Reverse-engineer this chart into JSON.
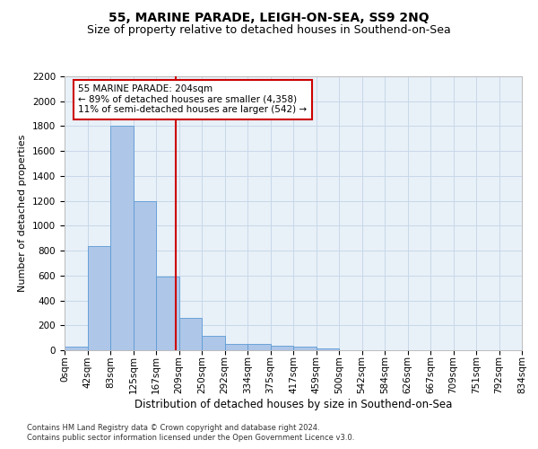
{
  "title": "55, MARINE PARADE, LEIGH-ON-SEA, SS9 2NQ",
  "subtitle": "Size of property relative to detached houses in Southend-on-Sea",
  "xlabel": "Distribution of detached houses by size in Southend-on-Sea",
  "ylabel": "Number of detached properties",
  "bin_labels": [
    "0sqm",
    "42sqm",
    "83sqm",
    "125sqm",
    "167sqm",
    "209sqm",
    "250sqm",
    "292sqm",
    "334sqm",
    "375sqm",
    "417sqm",
    "459sqm",
    "500sqm",
    "542sqm",
    "584sqm",
    "626sqm",
    "667sqm",
    "709sqm",
    "751sqm",
    "792sqm",
    "834sqm"
  ],
  "bar_values": [
    30,
    840,
    1800,
    1200,
    590,
    260,
    115,
    50,
    50,
    35,
    30,
    15,
    0,
    0,
    0,
    0,
    0,
    0,
    0,
    0
  ],
  "bar_color": "#aec6e8",
  "bar_edge_color": "#5b9bd5",
  "grid_color": "#c8d8e8",
  "background_color": "#e8f0f8",
  "vline_color": "#cc0000",
  "annotation_text": "55 MARINE PARADE: 204sqm\n← 89% of detached houses are smaller (4,358)\n11% of semi-detached houses are larger (542) →",
  "annotation_box_color": "#ffffff",
  "annotation_box_edge": "#cc0000",
  "ylim": [
    0,
    2200
  ],
  "yticks": [
    0,
    200,
    400,
    600,
    800,
    1000,
    1200,
    1400,
    1600,
    1800,
    2000,
    2200
  ],
  "footnote1": "Contains HM Land Registry data © Crown copyright and database right 2024.",
  "footnote2": "Contains public sector information licensed under the Open Government Licence v3.0.",
  "title_fontsize": 10,
  "subtitle_fontsize": 9,
  "ylabel_fontsize": 8,
  "xlabel_fontsize": 8.5,
  "tick_fontsize": 7.5,
  "footnote_fontsize": 6,
  "annot_fontsize": 7.5
}
